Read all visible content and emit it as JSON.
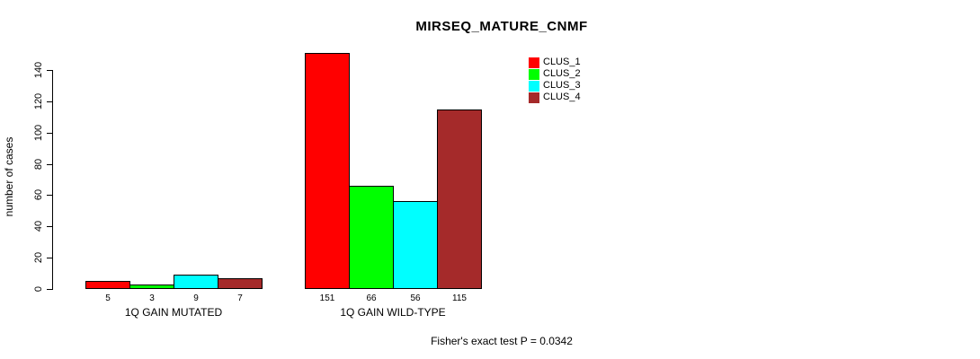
{
  "title": "MIRSEQ_MATURE_CNMF",
  "footnote": "Fisher's exact test P = 0.0342",
  "chart_data": {
    "type": "bar",
    "grouped": true,
    "title": "MIRSEQ_MATURE_CNMF",
    "xlabel": "",
    "ylabel": "number of cases",
    "categories": [
      "1Q GAIN MUTATED",
      "1Q GAIN WILD-TYPE"
    ],
    "series": [
      {
        "name": "CLUS_1",
        "color": "#FF0000",
        "values": [
          5,
          151
        ]
      },
      {
        "name": "CLUS_2",
        "color": "#00FF00",
        "values": [
          3,
          66
        ]
      },
      {
        "name": "CLUS_3",
        "color": "#00FFFF",
        "values": [
          9,
          56
        ]
      },
      {
        "name": "CLUS_4",
        "color": "#A52A2A",
        "values": [
          7,
          115
        ]
      }
    ],
    "bar_value_labels": [
      [
        "5",
        "3",
        "9",
        "7"
      ],
      [
        "151",
        "66",
        "56",
        "115"
      ]
    ],
    "yticks": [
      0,
      20,
      40,
      60,
      80,
      100,
      120,
      140
    ],
    "ylim": [
      0,
      151
    ],
    "grid": false,
    "legend_position": "top-right",
    "annotation": "Fisher's exact test P = 0.0342"
  }
}
